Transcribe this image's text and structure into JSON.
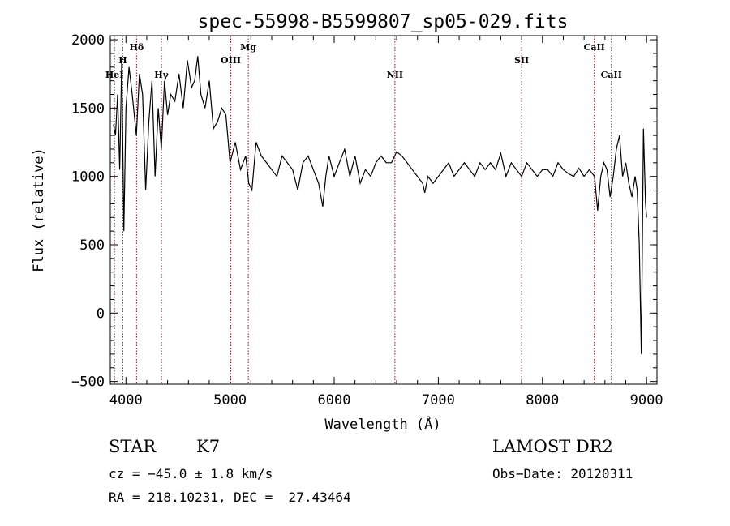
{
  "chart_data": {
    "type": "line",
    "title": "spec-55998-B5599807_sp05-029.fits",
    "xlabel": "Wavelength (Å)",
    "ylabel": "Flux (relative)",
    "xlim": [
      3850,
      9100
    ],
    "ylim": [
      -520,
      2030
    ],
    "x_ticks": [
      4000,
      5000,
      6000,
      7000,
      8000,
      9000
    ],
    "y_ticks": [
      -500,
      0,
      500,
      1000,
      1500,
      2000
    ],
    "grid": false,
    "series": [
      {
        "x": [
          3880,
          3900,
          3920,
          3940,
          3960,
          3980,
          4000,
          4030,
          4060,
          4100,
          4130,
          4160,
          4190,
          4220,
          4250,
          4280,
          4310,
          4340,
          4370,
          4400,
          4430,
          4470,
          4510,
          4550,
          4590,
          4630,
          4660,
          4690,
          4720,
          4760,
          4800,
          4840,
          4880,
          4920,
          4960,
          5000,
          5050,
          5100,
          5150,
          5180,
          5210,
          5250,
          5300,
          5350,
          5400,
          5450,
          5500,
          5550,
          5600,
          5650,
          5700,
          5750,
          5800,
          5850,
          5890,
          5920,
          5950,
          6000,
          6050,
          6100,
          6150,
          6200,
          6250,
          6300,
          6350,
          6400,
          6450,
          6500,
          6550,
          6600,
          6650,
          6700,
          6750,
          6800,
          6850,
          6870,
          6900,
          6950,
          7000,
          7050,
          7100,
          7150,
          7200,
          7250,
          7300,
          7350,
          7400,
          7450,
          7500,
          7550,
          7600,
          7650,
          7700,
          7750,
          7800,
          7850,
          7900,
          7950,
          8000,
          8050,
          8100,
          8150,
          8200,
          8250,
          8300,
          8350,
          8400,
          8450,
          8500,
          8530,
          8560,
          8590,
          8620,
          8650,
          8680,
          8710,
          8740,
          8770,
          8800,
          8830,
          8860,
          8890,
          8910,
          8930,
          8950,
          8970,
          8990,
          9000
        ],
        "y": [
          1380,
          1300,
          1600,
          1050,
          1850,
          600,
          1500,
          1800,
          1600,
          1300,
          1750,
          1600,
          900,
          1400,
          1700,
          1000,
          1500,
          1200,
          1700,
          1450,
          1600,
          1550,
          1750,
          1500,
          1850,
          1650,
          1700,
          1880,
          1600,
          1500,
          1700,
          1350,
          1400,
          1500,
          1450,
          1100,
          1250,
          1050,
          1150,
          950,
          900,
          1250,
          1150,
          1100,
          1050,
          1000,
          1150,
          1100,
          1050,
          900,
          1100,
          1150,
          1050,
          950,
          780,
          1000,
          1150,
          1000,
          1100,
          1200,
          1000,
          1150,
          950,
          1050,
          1000,
          1100,
          1150,
          1100,
          1100,
          1180,
          1150,
          1100,
          1050,
          1000,
          950,
          880,
          1000,
          950,
          1000,
          1050,
          1100,
          1000,
          1050,
          1100,
          1050,
          1000,
          1100,
          1050,
          1100,
          1050,
          1170,
          1000,
          1100,
          1050,
          1000,
          1100,
          1050,
          1000,
          1050,
          1050,
          1000,
          1100,
          1050,
          1020,
          1000,
          1060,
          1000,
          1050,
          1000,
          750,
          1000,
          1100,
          1050,
          850,
          1000,
          1200,
          1300,
          1000,
          1100,
          950,
          850,
          1000,
          900,
          500,
          -300,
          1350,
          800,
          700
        ]
      }
    ],
    "line_markers": [
      {
        "label": "HeI",
        "x": 3890,
        "row": 3
      },
      {
        "label": "H",
        "x": 3970,
        "row": 2
      },
      {
        "label": "Hδ",
        "x": 4102,
        "row": 1
      },
      {
        "label": "Hγ",
        "x": 4341,
        "row": 3
      },
      {
        "label": "OIII",
        "x": 5007,
        "row": 2
      },
      {
        "label": "Mg",
        "x": 5175,
        "row": 1
      },
      {
        "label": "NII",
        "x": 6583,
        "row": 3
      },
      {
        "label": "SII",
        "x": 7800,
        "row": 2
      },
      {
        "label": "CaII",
        "x": 8498,
        "row": 1
      },
      {
        "label": "CaII",
        "x": 8662,
        "row": 3
      }
    ]
  },
  "info": {
    "object_class": "STAR",
    "subclass": "K7",
    "survey": "LAMOST DR2",
    "cz": "cz = −45.0 ± 1.8 km/s",
    "obs_date": "Obs−Date: 20120311",
    "coords": "RA = 218.10231, DEC =  27.43464"
  }
}
